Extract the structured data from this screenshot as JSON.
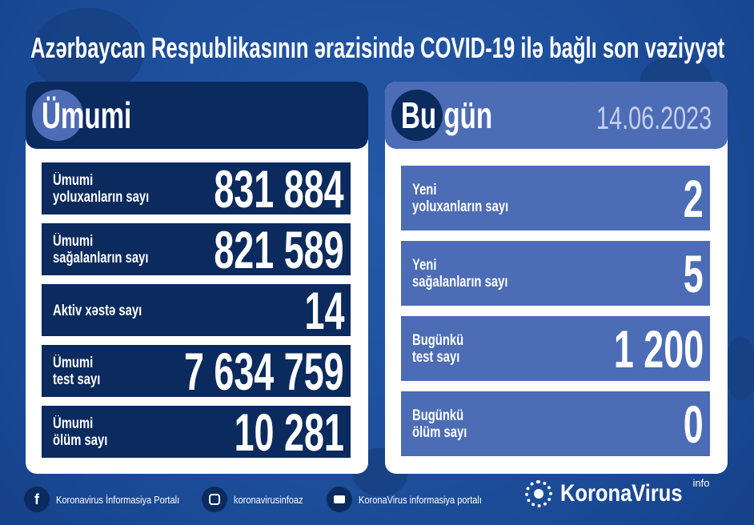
{
  "title": "Azərbaycan Respublikasının ərazisində COVID-19 ilə bağlı son vəziyyət",
  "colors": {
    "background": "#1d4f9e",
    "dark_navy": "#0b2a5e",
    "medium_blue": "#4c6cb6",
    "date": "#c6cfea"
  },
  "total": {
    "heading": "Ümumi",
    "rows": [
      {
        "line1": "Ümumi",
        "line2": "yoluxanların sayı",
        "value": "831 884"
      },
      {
        "line1": "Ümumi",
        "line2": "sağalanların sayı",
        "value": "821 589"
      },
      {
        "line1": "Aktiv xəstə sayı",
        "line2": "",
        "value": "14"
      },
      {
        "line1": "Ümumi",
        "line2": "test sayı",
        "value": "7 634 759"
      },
      {
        "line1": "Ümumi",
        "line2": "ölüm sayı",
        "value": "10 281"
      }
    ]
  },
  "today": {
    "heading": "Bu gün",
    "date": "14.06.2023",
    "rows": [
      {
        "line1": "Yeni",
        "line2": "yoluxanların sayı",
        "value": "2"
      },
      {
        "line1": "Yeni",
        "line2": "sağalanların sayı",
        "value": "5"
      },
      {
        "line1": "Bugünkü",
        "line2": "test sayı",
        "value": "1 200"
      },
      {
        "line1": "Bugünkü",
        "line2": "ölüm sayı",
        "value": "0"
      }
    ]
  },
  "footer": {
    "facebook": {
      "icon": "facebook-icon",
      "label": "Koronavirus İnformasiya Portalı"
    },
    "instagram": {
      "icon": "instagram-icon",
      "label": "koronavirusinfoaz"
    },
    "youtube": {
      "icon": "youtube-icon",
      "label": "KoronaVirus informasiya portalı"
    },
    "brand": {
      "name": "KoronaVirus",
      "suffix": "info",
      "icon": "sun-virus-logo-icon"
    }
  }
}
